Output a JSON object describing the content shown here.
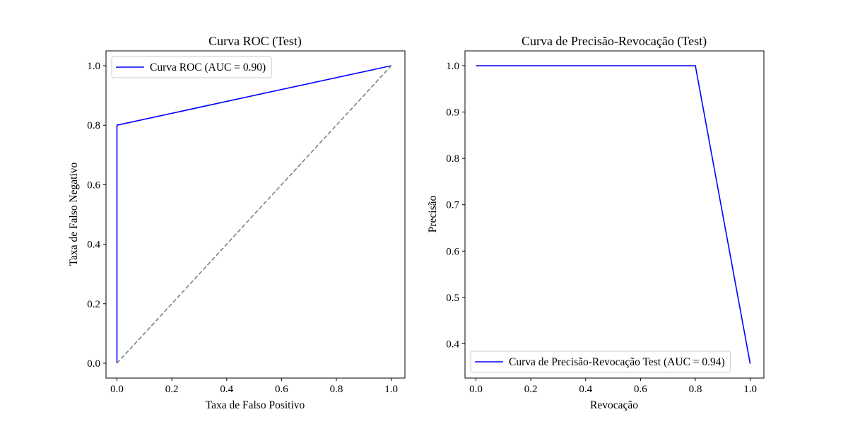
{
  "chart_data": [
    {
      "type": "line",
      "title": "Curva ROC (Test)",
      "xlabel": "Taxa de Falso Positivo",
      "ylabel": "Taxa de Falso Negativo",
      "xlim": [
        -0.04,
        1.05
      ],
      "ylim": [
        -0.05,
        1.05
      ],
      "xticks": [
        0.0,
        0.2,
        0.4,
        0.6,
        0.8,
        1.0
      ],
      "yticks": [
        0.0,
        0.2,
        0.4,
        0.6,
        0.8,
        1.0
      ],
      "xticklabels": [
        "0.0",
        "0.2",
        "0.4",
        "0.6",
        "0.8",
        "1.0"
      ],
      "yticklabels": [
        "0.0",
        "0.2",
        "0.4",
        "0.6",
        "0.8",
        "1.0"
      ],
      "legend_position": "upper-left",
      "series": [
        {
          "name": "Curva ROC (AUC = 0.90)",
          "color": "#0000ff",
          "style": "solid",
          "x": [
            0.0,
            0.0,
            1.0
          ],
          "y": [
            0.0,
            0.8,
            1.0
          ],
          "in_legend": true
        },
        {
          "color": "#808080",
          "style": "dashed",
          "x": [
            0.0,
            1.0
          ],
          "y": [
            0.0,
            1.0
          ],
          "in_legend": false
        }
      ]
    },
    {
      "type": "line",
      "title": "Curva de Precisão-Revocação (Test)",
      "xlabel": "Revocação",
      "ylabel": "Precisão",
      "xlim": [
        -0.04,
        1.05
      ],
      "ylim": [
        0.326,
        1.032
      ],
      "xticks": [
        0.0,
        0.2,
        0.4,
        0.6,
        0.8,
        1.0
      ],
      "yticks": [
        0.4,
        0.5,
        0.6,
        0.7,
        0.8,
        0.9,
        1.0
      ],
      "xticklabels": [
        "0.0",
        "0.2",
        "0.4",
        "0.6",
        "0.8",
        "1.0"
      ],
      "yticklabels": [
        "0.4",
        "0.5",
        "0.6",
        "0.7",
        "0.8",
        "0.9",
        "1.0"
      ],
      "legend_position": "lower-left",
      "series": [
        {
          "name": "Curva de Precisão-Revocação Test (AUC = 0.94)",
          "color": "#0000ff",
          "style": "solid",
          "x": [
            0.0,
            0.8,
            1.0
          ],
          "y": [
            1.0,
            1.0,
            0.357
          ],
          "in_legend": true
        }
      ]
    }
  ]
}
